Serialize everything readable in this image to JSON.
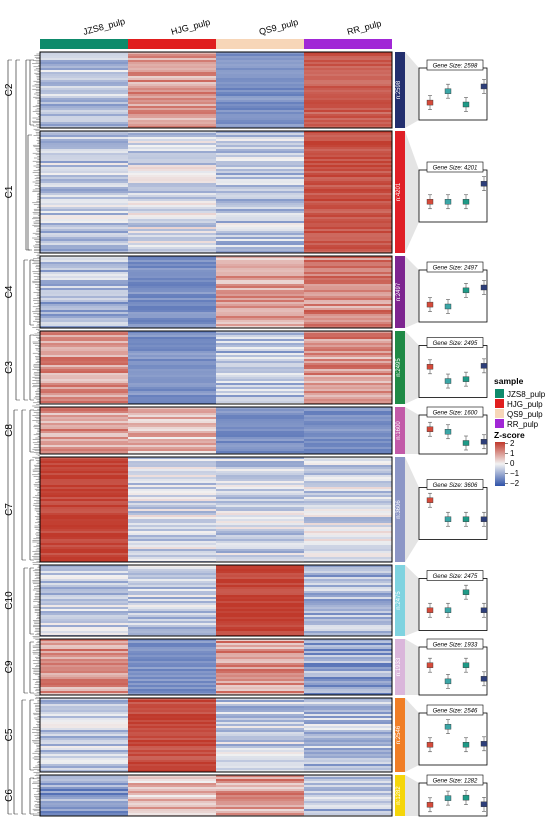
{
  "chart_data": {
    "type": "heatmap",
    "samples": [
      "JZS8_pulp",
      "HJG_pulp",
      "QS9_pulp",
      "RR_pulp"
    ],
    "sample_colors": [
      "#0e8a6b",
      "#e01e1e",
      "#f7d6b8",
      "#a127d6"
    ],
    "legend": {
      "sample_title": "sample",
      "zscore_title": "Z-score",
      "zscore_ticks": [
        "2",
        "1",
        "0",
        "−1",
        "−2"
      ],
      "zscore_range": [
        -2,
        2
      ],
      "placement": "right"
    },
    "clusters": [
      {
        "name": "C2",
        "n": "n:2598",
        "gene_size": "Gene Size: 2598",
        "color": "#232f6e",
        "heat": [
          -0.6,
          0.9,
          -1.2,
          1.6
        ],
        "box": [
          -0.8,
          0.4,
          -1.0,
          0.9
        ]
      },
      {
        "name": "C1",
        "n": "n:4201",
        "gene_size": "Gene Size: 4201",
        "color": "#df1f26",
        "heat": [
          -0.5,
          -0.3,
          -0.5,
          1.7
        ],
        "box": [
          -0.5,
          -0.5,
          -0.5,
          1.4
        ]
      },
      {
        "name": "C4",
        "n": "n:2497",
        "gene_size": "Gene Size: 2497",
        "color": "#7d2590",
        "heat": [
          -0.7,
          -1.2,
          0.8,
          1.1
        ],
        "box": [
          -0.8,
          -1.0,
          0.7,
          1.0
        ]
      },
      {
        "name": "C3",
        "n": "n:2495",
        "gene_size": "Gene Size: 2495",
        "color": "#1f8a46",
        "heat": [
          0.9,
          -1.2,
          -0.6,
          1.0
        ],
        "box": [
          0.6,
          -0.9,
          -0.7,
          0.7
        ]
      },
      {
        "name": "C8",
        "n": "n:1600",
        "gene_size": "Gene Size: 1600",
        "color": "#c25aa8",
        "heat": [
          1.0,
          0.6,
          -1.2,
          -1.2
        ],
        "box": [
          1.0,
          0.6,
          -1.2,
          -1.0
        ]
      },
      {
        "name": "C7",
        "n": "n:3606",
        "gene_size": "Gene Size: 3606",
        "color": "#8c96c6",
        "heat": [
          1.9,
          -0.3,
          -0.4,
          -0.3
        ],
        "box": [
          1.5,
          -0.5,
          -0.5,
          -0.5
        ]
      },
      {
        "name": "C10",
        "n": "n:2475",
        "gene_size": "Gene Size: 2475",
        "color": "#7fd3e0",
        "heat": [
          -0.5,
          -0.5,
          1.9,
          -0.7
        ],
        "box": [
          -0.5,
          -0.5,
          1.4,
          -0.5
        ]
      },
      {
        "name": "C9",
        "n": "n:1933",
        "gene_size": "Gene Size: 1933",
        "color": "#dab6db",
        "heat": [
          1.0,
          -1.2,
          1.0,
          -0.9
        ],
        "box": [
          0.8,
          -1.1,
          0.8,
          -0.8
        ]
      },
      {
        "name": "C5",
        "n": "n:2546",
        "gene_size": "Gene Size: 2546",
        "color": "#f07e26",
        "heat": [
          -0.5,
          1.8,
          -0.5,
          -0.6
        ],
        "box": [
          -0.5,
          1.4,
          -0.5,
          -0.4
        ]
      },
      {
        "name": "C6",
        "n": "n:1282",
        "gene_size": "Gene Size: 1282",
        "color": "#f5d60a",
        "heat": [
          -1.1,
          0.6,
          0.9,
          -0.6
        ],
        "box": [
          -0.9,
          0.5,
          0.6,
          -0.8
        ]
      }
    ]
  }
}
